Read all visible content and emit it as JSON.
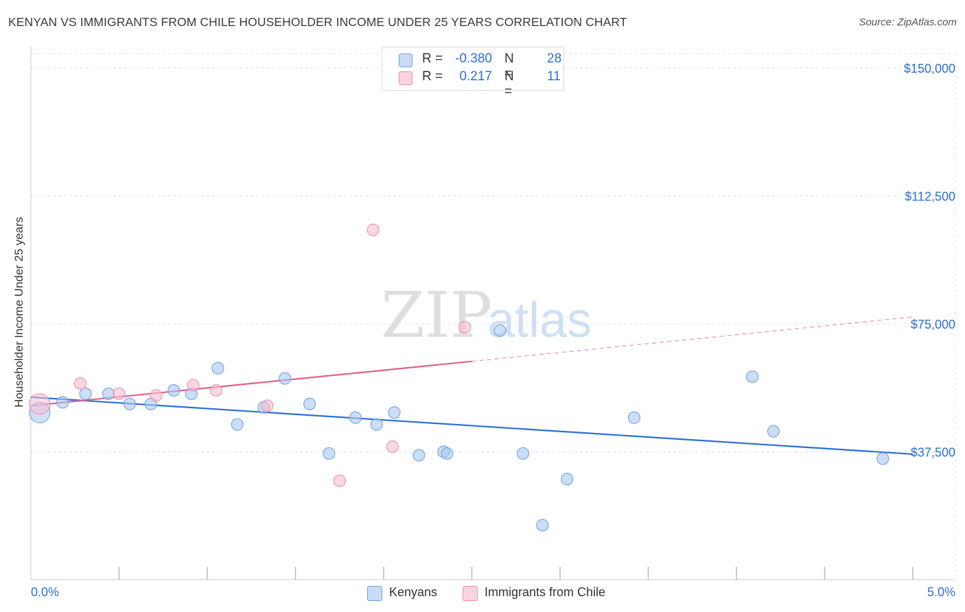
{
  "header": {
    "title": "KENYAN VS IMMIGRANTS FROM CHILE HOUSEHOLDER INCOME UNDER 25 YEARS CORRELATION CHART",
    "source": "Source: ZipAtlas.com"
  },
  "watermark": {
    "zip": "ZIP",
    "atlas": "atlas"
  },
  "legend": {
    "r_label": "R =",
    "n_label": "N =",
    "rows": [
      {
        "r": "-0.380",
        "n": "28",
        "color": "#a9c8f0"
      },
      {
        "r": "0.217",
        "n": "11",
        "color": "#f6bdd0"
      }
    ]
  },
  "bottom_legend": [
    {
      "label": "Kenyans",
      "color": "#a9c8f0"
    },
    {
      "label": "Immigrants from Chile",
      "color": "#f6bdd0"
    }
  ],
  "chart_data": {
    "type": "scatter",
    "title": "KENYAN VS IMMIGRANTS FROM CHILE HOUSEHOLDER INCOME UNDER 25 YEARS CORRELATION CHART",
    "xlabel": "",
    "ylabel": "Householder Income Under 25 years",
    "xlim": [
      0.0,
      5.0
    ],
    "ylim": [
      0,
      154000
    ],
    "x_tick_labels": [
      {
        "value": 0.0,
        "label": "0.0%"
      },
      {
        "value": 5.0,
        "label": "5.0%"
      }
    ],
    "y_ticks": [
      {
        "value": 150000,
        "label": "$150,000"
      },
      {
        "value": 112500,
        "label": "$112,500"
      },
      {
        "value": 75000,
        "label": "$75,000"
      },
      {
        "value": 37500,
        "label": "$37,500"
      }
    ],
    "grid": true,
    "legend_position": "top-center",
    "series": [
      {
        "name": "Kenyans",
        "color": "#a9c8f0",
        "stroke": "#6f9fdc",
        "trend": {
          "x0": 0.0,
          "y0": 53500,
          "x1": 5.0,
          "y1": 36800,
          "color": "#2a6fd6",
          "dashed_from": null
        },
        "points": [
          {
            "x": 0.05,
            "y": 49000,
            "big": true
          },
          {
            "x": 0.18,
            "y": 52000
          },
          {
            "x": 0.31,
            "y": 54500
          },
          {
            "x": 0.44,
            "y": 54500
          },
          {
            "x": 0.56,
            "y": 51500
          },
          {
            "x": 0.68,
            "y": 51500
          },
          {
            "x": 0.81,
            "y": 55500
          },
          {
            "x": 0.91,
            "y": 54500
          },
          {
            "x": 1.06,
            "y": 62000
          },
          {
            "x": 1.17,
            "y": 45500
          },
          {
            "x": 1.32,
            "y": 50500
          },
          {
            "x": 1.44,
            "y": 59000
          },
          {
            "x": 1.58,
            "y": 51500
          },
          {
            "x": 1.69,
            "y": 37000
          },
          {
            "x": 1.84,
            "y": 47500
          },
          {
            "x": 1.96,
            "y": 45500
          },
          {
            "x": 2.06,
            "y": 49000
          },
          {
            "x": 2.2,
            "y": 36500
          },
          {
            "x": 2.34,
            "y": 37500
          },
          {
            "x": 2.36,
            "y": 37000
          },
          {
            "x": 2.66,
            "y": 73000
          },
          {
            "x": 2.79,
            "y": 37000
          },
          {
            "x": 2.9,
            "y": 16000
          },
          {
            "x": 3.04,
            "y": 29500
          },
          {
            "x": 3.42,
            "y": 47500
          },
          {
            "x": 4.09,
            "y": 59500
          },
          {
            "x": 4.21,
            "y": 43500
          },
          {
            "x": 4.83,
            "y": 35500
          }
        ]
      },
      {
        "name": "Immigrants from Chile",
        "color": "#f6bdd0",
        "stroke": "#e98fae",
        "trend": {
          "x0": 0.0,
          "y0": 51000,
          "x1": 5.0,
          "y1": 77000,
          "color": "#e0608c",
          "dashed_from": 2.5
        },
        "points": [
          {
            "x": 0.05,
            "y": 51500,
            "big": true
          },
          {
            "x": 0.28,
            "y": 57500
          },
          {
            "x": 0.5,
            "y": 54500
          },
          {
            "x": 0.71,
            "y": 54000
          },
          {
            "x": 0.92,
            "y": 57000
          },
          {
            "x": 1.05,
            "y": 55500
          },
          {
            "x": 1.34,
            "y": 51000
          },
          {
            "x": 1.75,
            "y": 29000
          },
          {
            "x": 1.94,
            "y": 102500
          },
          {
            "x": 2.05,
            "y": 39000
          },
          {
            "x": 2.46,
            "y": 74000
          }
        ]
      }
    ]
  }
}
